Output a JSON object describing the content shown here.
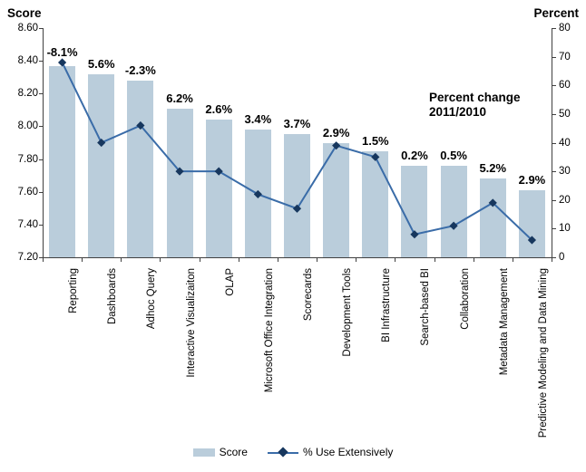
{
  "chart_data": {
    "type": "bar+line",
    "left_axis": {
      "label": "Score",
      "min": 7.2,
      "max": 8.6,
      "ticks": [
        "8.60",
        "8.40",
        "8.20",
        "8.00",
        "7.80",
        "7.60",
        "7.40",
        "7.20"
      ]
    },
    "right_axis": {
      "label": "Percent",
      "min": 0,
      "max": 80,
      "ticks": [
        "80",
        "70",
        "60",
        "50",
        "40",
        "30",
        "20",
        "10",
        "0"
      ]
    },
    "categories": [
      "Reporting",
      "Dashboards",
      "Adhoc Query",
      "Interactive Visualizaiton",
      "OLAP",
      "Microsoft Office Integration",
      "Scorecards",
      "Development Tools",
      "BI Infrastructure",
      "Search-based BI",
      "Collaboration",
      "Metadata Management",
      "Predictive Modeling and Data Mining"
    ],
    "series": [
      {
        "name": "Score",
        "type": "bar",
        "axis": "left",
        "values": [
          8.37,
          8.32,
          8.28,
          8.11,
          8.04,
          7.98,
          7.95,
          7.9,
          7.85,
          7.76,
          7.76,
          7.68,
          7.61
        ]
      },
      {
        "name": "% Use Extensively",
        "type": "line",
        "axis": "right",
        "values": [
          68,
          40,
          46,
          30,
          30,
          22,
          17,
          39,
          35,
          8,
          11,
          19,
          6
        ]
      }
    ],
    "point_labels": [
      "-8.1%",
      "5.6%",
      "-2.3%",
      "6.2%",
      "2.6%",
      "3.4%",
      "3.7%",
      "2.9%",
      "1.5%",
      "0.2%",
      "0.5%",
      "5.2%",
      "2.9%"
    ],
    "annotation": {
      "line1": "Percent change",
      "line2": "2011/2010"
    },
    "legend": [
      "Score",
      "% Use Extensively"
    ],
    "layout": {
      "grid": false,
      "legend_position": "bottom-center"
    }
  },
  "colors": {
    "bar_fill": "#BACDDB",
    "line": "#3A6CA8",
    "marker": "#17375E",
    "axis": "#404040",
    "text": "#000000"
  }
}
